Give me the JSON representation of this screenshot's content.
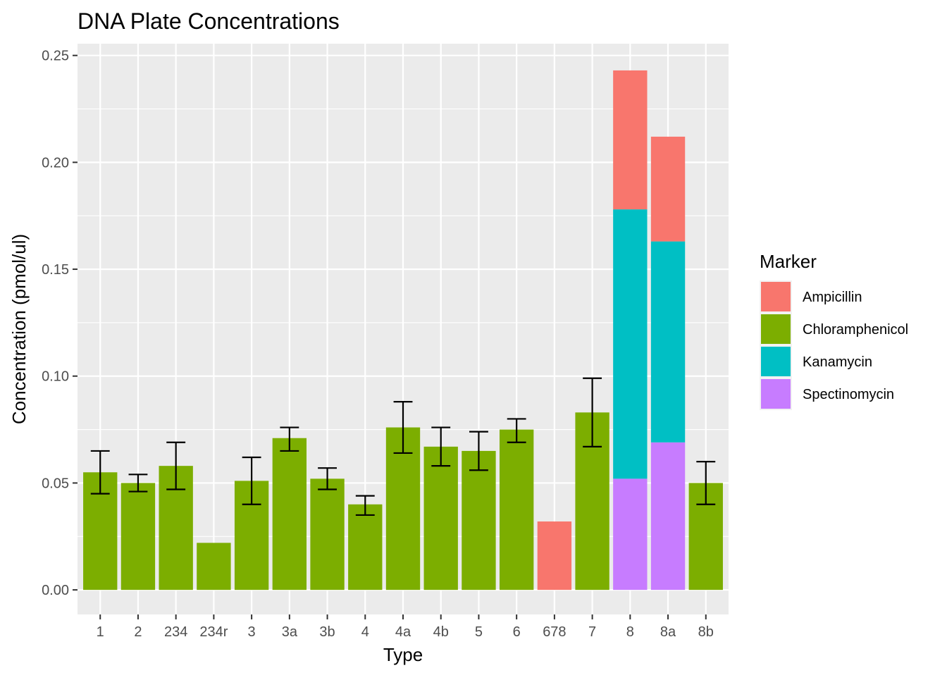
{
  "chart_data": {
    "type": "bar",
    "stacked": true,
    "title": "DNA Plate Concentrations",
    "xlabel": "Type",
    "ylabel": "Concentration (pmol/ul)",
    "ylim": [
      -0.0115,
      0.2555
    ],
    "yticks": [
      0.0,
      0.05,
      0.1,
      0.15,
      0.2,
      0.25
    ],
    "ytick_labels": [
      "0.00",
      "0.05",
      "0.10",
      "0.15",
      "0.20",
      "0.25"
    ],
    "grid": true,
    "legend": {
      "title": "Marker",
      "position": "right"
    },
    "categories": [
      "1",
      "2",
      "234",
      "234r",
      "3",
      "3a",
      "3b",
      "4",
      "4a",
      "4b",
      "5",
      "6",
      "678",
      "7",
      "8",
      "8a",
      "8b"
    ],
    "series": [
      {
        "name": "Ampicillin",
        "color": "#F8766D",
        "values": [
          0,
          0,
          0,
          0,
          0,
          0,
          0,
          0,
          0,
          0,
          0,
          0,
          0.032,
          0,
          0.065,
          0.049,
          0
        ]
      },
      {
        "name": "Chloramphenicol",
        "color": "#7CAE00",
        "values": [
          0.055,
          0.05,
          0.058,
          0.022,
          0.051,
          0.071,
          0.052,
          0.04,
          0.076,
          0.067,
          0.065,
          0.075,
          0,
          0.083,
          0,
          0,
          0.05
        ]
      },
      {
        "name": "Kanamycin",
        "color": "#00BFC4",
        "values": [
          0,
          0,
          0,
          0,
          0,
          0,
          0,
          0,
          0,
          0,
          0,
          0,
          0,
          0,
          0.126,
          0.094,
          0
        ]
      },
      {
        "name": "Spectinomycin",
        "color": "#C77CFF",
        "values": [
          0,
          0,
          0,
          0,
          0,
          0,
          0,
          0,
          0,
          0,
          0,
          0,
          0,
          0,
          0.052,
          0.069,
          0
        ]
      }
    ],
    "error_bars": [
      {
        "category": "1",
        "low": 0.045,
        "high": 0.065
      },
      {
        "category": "2",
        "low": 0.046,
        "high": 0.054
      },
      {
        "category": "234",
        "low": 0.047,
        "high": 0.069
      },
      {
        "category": "3",
        "low": 0.04,
        "high": 0.062
      },
      {
        "category": "3a",
        "low": 0.065,
        "high": 0.076
      },
      {
        "category": "3b",
        "low": 0.047,
        "high": 0.057
      },
      {
        "category": "4",
        "low": 0.035,
        "high": 0.044
      },
      {
        "category": "4a",
        "low": 0.064,
        "high": 0.088
      },
      {
        "category": "4b",
        "low": 0.058,
        "high": 0.076
      },
      {
        "category": "5",
        "low": 0.056,
        "high": 0.074
      },
      {
        "category": "6",
        "low": 0.069,
        "high": 0.08
      },
      {
        "category": "7",
        "low": 0.067,
        "high": 0.099
      },
      {
        "category": "8b",
        "low": 0.04,
        "high": 0.06
      }
    ]
  }
}
